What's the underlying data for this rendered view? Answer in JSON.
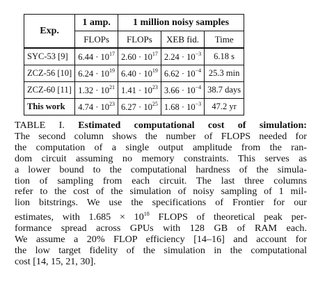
{
  "table": {
    "head": {
      "exp": "Exp.",
      "one_amp": "1 amp.",
      "noisy": "1 million noisy samples"
    },
    "subhead": [
      "FLOPs",
      "FLOPs",
      "XEB fid.",
      "Time"
    ],
    "rows": [
      {
        "exp": "SYC-53 [9]",
        "amp_mant": "6.44 · 10",
        "amp_exp": "17",
        "noisy_mant": "2.60 · 10",
        "noisy_exp": "17",
        "xeb_mant": "2.24 · 10",
        "xeb_exp": "−3",
        "time": "6.18 s"
      },
      {
        "exp": "ZCZ-56 [10]",
        "amp_mant": "6.24 · 10",
        "amp_exp": "19",
        "noisy_mant": "6.40 · 10",
        "noisy_exp": "19",
        "xeb_mant": "6.62 · 10",
        "xeb_exp": "−4",
        "time": "25.3 min"
      },
      {
        "exp": "ZCZ-60 [11]",
        "amp_mant": "1.32 · 10",
        "amp_exp": "21",
        "noisy_mant": "1.41 · 10",
        "noisy_exp": "23",
        "xeb_mant": "3.66 · 10",
        "xeb_exp": "−4",
        "time": "38.7 days"
      },
      {
        "exp": "This work",
        "amp_mant": "4.74 · 10",
        "amp_exp": "23",
        "noisy_mant": "6.27 · 10",
        "noisy_exp": "25",
        "xeb_mant": "1.68 · 10",
        "xeb_exp": "−3",
        "time": "47.2 yr"
      }
    ]
  },
  "caption": {
    "label": "TABLE I.",
    "title": "Estimated computational cost of simulation:",
    "lines": [
      "The second column shows the number of FLOPS needed for",
      "the computation of a single output amplitude from the ran-",
      "dom circuit assuming no memory constraints. This serves as",
      "a lower bound to the computational hardness of the simula-",
      "tion of sampling from each circuit. The last three columns",
      "refer to the cost of the simulation of noisy sampling of 1 mil-",
      "lion bitstrings. We use the specifications of Frontier for our"
    ],
    "line8_pre": "estimates, with 1.685 × 10",
    "line8_exp": "18",
    "line8_post": " FLOPS of theoretical peak per-",
    "lines_after": [
      "formance spread across GPUs with 128 GB of RAM each.",
      "We assume a 20% FLOP efficiency [14–16] and account for",
      "the low target fidelity of the simulation in the computational",
      "cost [14, 15, 21, 30]."
    ]
  }
}
